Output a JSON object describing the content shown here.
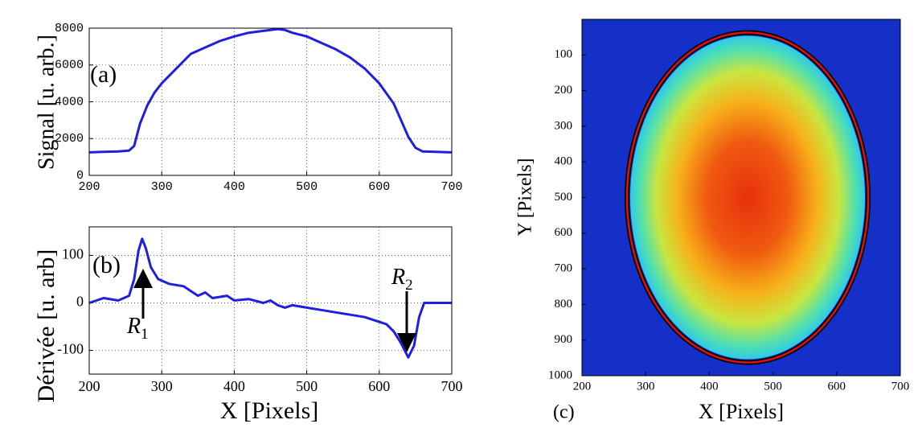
{
  "chart_data": [
    {
      "type": "line",
      "annotation": "(a)",
      "ylabel": "Signal [u. arb.]",
      "color": "#1f1fe0",
      "grid": true,
      "tick_font": "mono",
      "x": [
        200,
        220,
        240,
        255,
        262,
        270,
        280,
        290,
        300,
        320,
        340,
        360,
        380,
        400,
        420,
        440,
        460,
        470,
        480,
        500,
        520,
        540,
        560,
        580,
        600,
        620,
        630,
        640,
        650,
        660,
        700
      ],
      "values": [
        1250,
        1280,
        1300,
        1350,
        1600,
        2800,
        3800,
        4500,
        5000,
        5800,
        6600,
        6950,
        7300,
        7550,
        7750,
        7850,
        7950,
        7900,
        7750,
        7550,
        7200,
        6850,
        6400,
        5800,
        5000,
        3900,
        3000,
        2100,
        1500,
        1300,
        1250
      ],
      "xlim": [
        200,
        700
      ],
      "ylim": [
        0,
        8000
      ],
      "xticks": [
        200,
        300,
        400,
        500,
        600,
        700
      ],
      "yticks": [
        0,
        2000,
        4000,
        6000,
        8000
      ]
    },
    {
      "type": "line",
      "annotation": "(b)",
      "ylabel": "Dérivée [u. arb]",
      "xlabel": "X [Pixels]",
      "color": "#1f1fe0",
      "grid": true,
      "tick_font": "serif",
      "x": [
        200,
        220,
        240,
        255,
        262,
        268,
        273,
        278,
        285,
        295,
        310,
        330,
        340,
        350,
        360,
        370,
        390,
        400,
        420,
        440,
        450,
        460,
        470,
        480,
        500,
        520,
        540,
        560,
        580,
        600,
        610,
        620,
        630,
        640,
        648,
        655,
        662,
        700
      ],
      "values": [
        0,
        10,
        5,
        15,
        50,
        110,
        135,
        115,
        75,
        50,
        40,
        35,
        25,
        15,
        22,
        10,
        15,
        5,
        8,
        0,
        5,
        -5,
        -10,
        -5,
        -10,
        -15,
        -20,
        -25,
        -30,
        -40,
        -45,
        -60,
        -85,
        -115,
        -90,
        -30,
        0,
        0
      ],
      "xlim": [
        200,
        700
      ],
      "ylim": [
        -150,
        160
      ],
      "xticks": [
        200,
        300,
        400,
        500,
        600,
        700
      ],
      "yticks": [
        -100,
        0,
        100
      ],
      "markers": [
        {
          "text": "R",
          "sub": "1"
        },
        {
          "text": "R",
          "sub": "2"
        }
      ]
    },
    {
      "type": "image",
      "annotation": "(c)",
      "ylabel": "Y [Pixels]",
      "xlabel": "X [Pixels]",
      "tick_font": "serif",
      "xlim": [
        200,
        700
      ],
      "ylim": [
        1000,
        0
      ],
      "xticks": [
        200,
        300,
        400,
        500,
        600,
        700
      ],
      "yticks": [
        100,
        200,
        300,
        400,
        500,
        600,
        700,
        800,
        900,
        1000
      ]
    }
  ]
}
